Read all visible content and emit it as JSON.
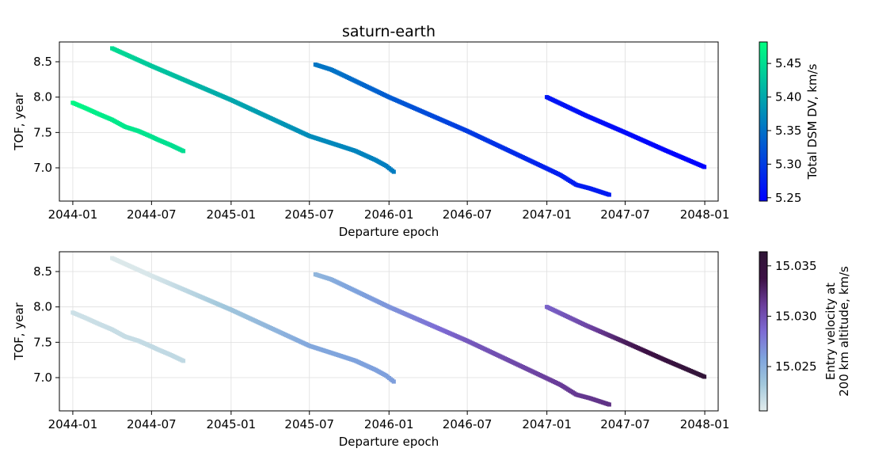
{
  "figure": {
    "title": "saturn-earth"
  },
  "chart_data": [
    {
      "type": "scatter",
      "title": "saturn-earth",
      "xlabel": "Departure epoch",
      "ylabel": "TOF, year",
      "xticks": [
        "2044-01",
        "2044-07",
        "2045-01",
        "2045-07",
        "2046-01",
        "2046-07",
        "2047-01",
        "2047-07",
        "2048-01"
      ],
      "yticks": [
        "7.0",
        "7.5",
        "8.0",
        "8.5"
      ],
      "xlim": [
        "2043-12-01",
        "2048-02-01"
      ],
      "ylim": [
        6.53,
        8.78
      ],
      "grid": true,
      "colorbar": {
        "label": "Total DSM DV, km/s",
        "ticks": [
          "5.25",
          "5.30",
          "5.35",
          "5.40",
          "5.45"
        ],
        "range": [
          5.245,
          5.482
        ],
        "colormap": "winter",
        "colors": [
          "#0000ff",
          "#00ff80"
        ]
      },
      "series": [
        {
          "points": [
            [
              "2044-01-01",
              7.92,
              5.475
            ],
            [
              "2044-02-01",
              7.84,
              5.47
            ],
            [
              "2044-03-01",
              7.76,
              5.465
            ],
            [
              "2044-04-01",
              7.68,
              5.462
            ],
            [
              "2044-05-01",
              7.58,
              5.46
            ],
            [
              "2044-06-01",
              7.52,
              5.458
            ],
            [
              "2044-07-01",
              7.44,
              5.455
            ],
            [
              "2044-07-15",
              7.4,
              5.454
            ],
            [
              "2044-08-15",
              7.32,
              5.452
            ],
            [
              "2044-09-15",
              7.23,
              5.45
            ]
          ]
        },
        {
          "points": [
            [
              "2044-04-01",
              8.69,
              5.45
            ],
            [
              "2044-07-01",
              8.44,
              5.43
            ],
            [
              "2045-01-01",
              7.96,
              5.4
            ],
            [
              "2045-07-01",
              7.45,
              5.375
            ],
            [
              "2045-09-15",
              7.3,
              5.37
            ],
            [
              "2045-10-15",
              7.24,
              5.368
            ],
            [
              "2045-12-01",
              7.11,
              5.365
            ],
            [
              "2045-12-25",
              7.03,
              5.362
            ],
            [
              "2046-01-15",
              6.93,
              5.36
            ]
          ]
        },
        {
          "points": [
            [
              "2045-07-15",
              8.46,
              5.355
            ],
            [
              "2045-08-20",
              8.39,
              5.352
            ],
            [
              "2045-09-10",
              8.33,
              5.35
            ],
            [
              "2046-01-01",
              8.0,
              5.33
            ],
            [
              "2046-07-01",
              7.52,
              5.3
            ],
            [
              "2047-01-01",
              6.99,
              5.275
            ],
            [
              "2047-02-01",
              6.9,
              5.273
            ],
            [
              "2047-03-10",
              6.76,
              5.272
            ],
            [
              "2047-04-10",
              6.71,
              5.271
            ],
            [
              "2047-05-25",
              6.62,
              5.27
            ]
          ]
        },
        {
          "points": [
            [
              "2047-01-01",
              8.0,
              5.265
            ],
            [
              "2047-04-01",
              7.74,
              5.26
            ],
            [
              "2047-07-01",
              7.5,
              5.255
            ],
            [
              "2047-10-01",
              7.25,
              5.25
            ],
            [
              "2048-01-01",
              7.01,
              5.247
            ]
          ]
        }
      ]
    },
    {
      "type": "scatter",
      "xlabel": "Departure epoch",
      "ylabel": "TOF, year",
      "xticks": [
        "2044-01",
        "2044-07",
        "2045-01",
        "2045-07",
        "2046-01",
        "2046-07",
        "2047-01",
        "2047-07",
        "2048-01"
      ],
      "yticks": [
        "7.0",
        "7.5",
        "8.0",
        "8.5"
      ],
      "xlim": [
        "2043-12-01",
        "2048-02-01"
      ],
      "ylim": [
        6.53,
        8.78
      ],
      "grid": true,
      "colorbar": {
        "label_lines": [
          "Entry velocity at",
          "200 km altitude, km/s"
        ],
        "ticks": [
          "15.025",
          "15.030",
          "15.035"
        ],
        "range": [
          15.0206,
          15.0364
        ],
        "colormap": "twilight-like",
        "colors": [
          "#e2ecec",
          "#a2c8dc",
          "#7ea3dd",
          "#7d6bd4",
          "#6a3d9a",
          "#3d1145",
          "#2f1535"
        ]
      },
      "series": [
        {
          "points": [
            [
              "2044-01-01",
              7.92,
              15.0215
            ],
            [
              "2044-02-01",
              7.84,
              15.0215
            ],
            [
              "2044-03-01",
              7.76,
              15.0216
            ],
            [
              "2044-04-01",
              7.68,
              15.0217
            ],
            [
              "2044-05-01",
              7.58,
              15.0217
            ],
            [
              "2044-06-01",
              7.52,
              15.0218
            ],
            [
              "2044-07-01",
              7.44,
              15.0219
            ],
            [
              "2044-07-15",
              7.4,
              15.0219
            ],
            [
              "2044-08-15",
              7.32,
              15.022
            ],
            [
              "2044-09-15",
              7.23,
              15.022
            ]
          ]
        },
        {
          "points": [
            [
              "2044-04-01",
              8.69,
              15.0208
            ],
            [
              "2044-07-01",
              8.44,
              15.021
            ],
            [
              "2045-01-01",
              7.96,
              15.0235
            ],
            [
              "2045-07-01",
              7.45,
              15.0255
            ],
            [
              "2045-09-15",
              7.3,
              15.0258
            ],
            [
              "2045-10-15",
              7.24,
              15.0259
            ],
            [
              "2045-12-01",
              7.11,
              15.026
            ],
            [
              "2045-12-25",
              7.03,
              15.026
            ],
            [
              "2046-01-15",
              6.93,
              15.0261
            ]
          ]
        },
        {
          "points": [
            [
              "2045-07-15",
              8.46,
              15.0245
            ],
            [
              "2045-08-20",
              8.39,
              15.025
            ],
            [
              "2045-09-10",
              8.33,
              15.0255
            ],
            [
              "2046-01-01",
              8.0,
              15.0265
            ],
            [
              "2046-07-01",
              7.52,
              15.0295
            ],
            [
              "2047-01-01",
              6.99,
              15.031
            ],
            [
              "2047-02-01",
              6.9,
              15.0312
            ],
            [
              "2047-03-10",
              6.76,
              15.0314
            ],
            [
              "2047-04-10",
              6.71,
              15.0315
            ],
            [
              "2047-05-25",
              6.62,
              15.0318
            ]
          ]
        },
        {
          "points": [
            [
              "2047-01-01",
              8.0,
              15.029
            ],
            [
              "2047-04-01",
              7.74,
              15.0305
            ],
            [
              "2047-07-01",
              7.5,
              15.033
            ],
            [
              "2047-10-01",
              7.25,
              15.0345
            ],
            [
              "2048-01-01",
              7.01,
              15.036
            ]
          ]
        }
      ]
    }
  ]
}
